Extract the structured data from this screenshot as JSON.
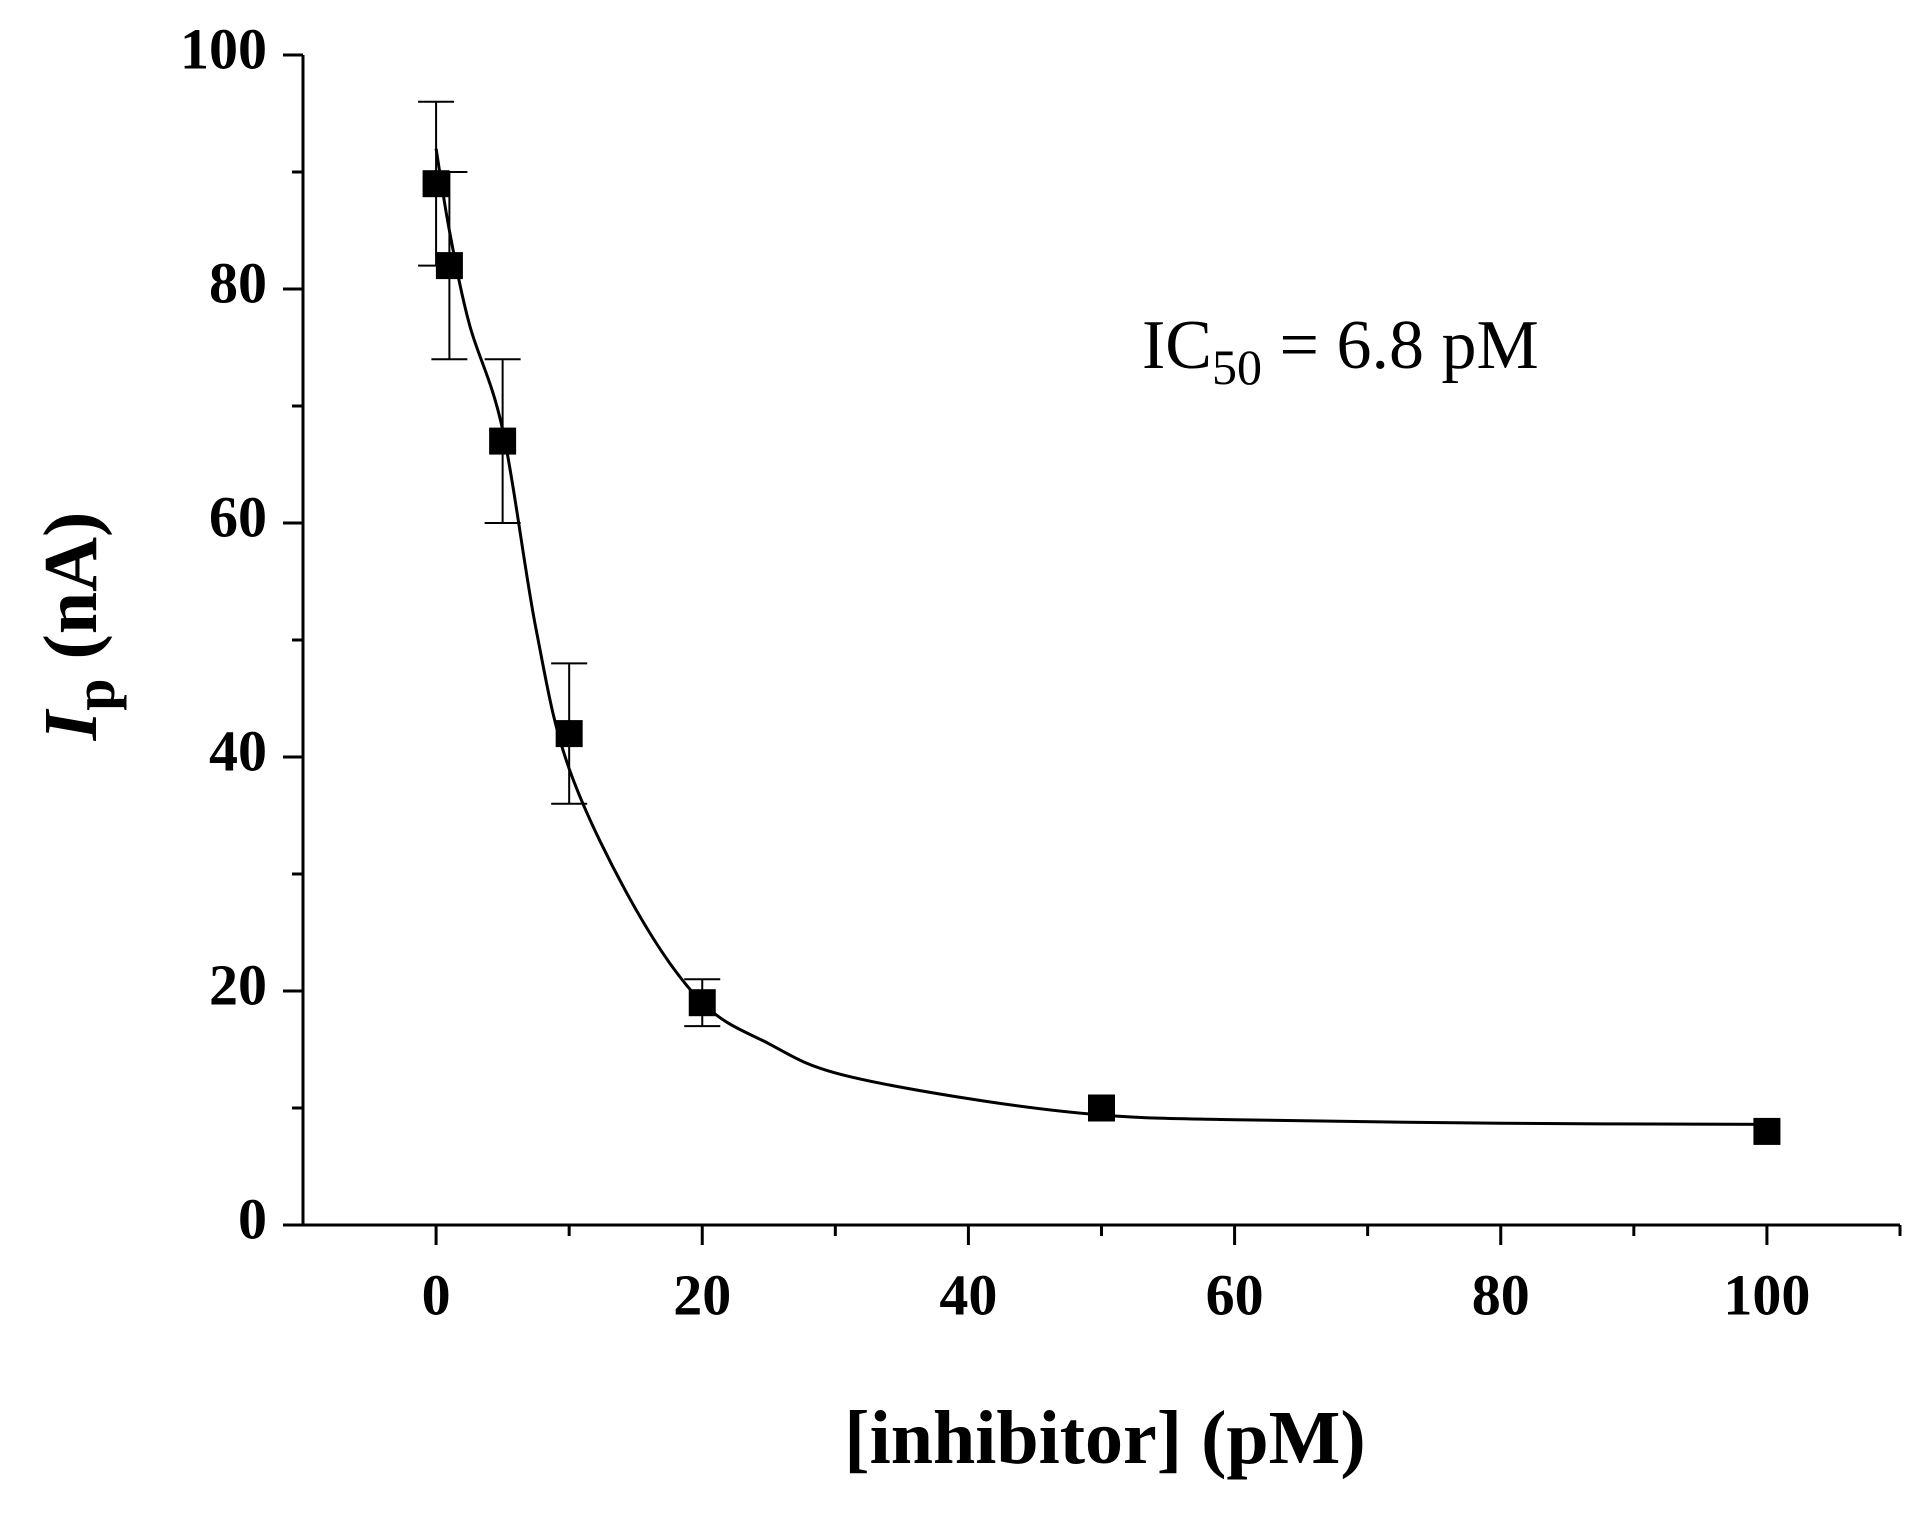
{
  "chart_data": {
    "type": "scatter",
    "annotation": {
      "main": "IC",
      "sub": "50",
      "rest": " = 6.8 pM"
    },
    "x_label": "[inhibitor] (pM)",
    "y_label": {
      "symbol": "I",
      "sub": "p",
      "rest": " (nA)"
    },
    "xlim": [
      -10,
      110
    ],
    "xticks": [
      0,
      20,
      40,
      60,
      80,
      100
    ],
    "xminorticks": [
      10,
      30,
      50,
      70,
      90,
      110
    ],
    "ylim": [
      0,
      100
    ],
    "yticks": [
      0,
      20,
      40,
      60,
      80,
      100
    ],
    "yminorticks": [
      10,
      30,
      50,
      70,
      90
    ],
    "grid": false,
    "series": [
      {
        "kind": "points",
        "color": "#000000",
        "marker": "square",
        "x": [
          0,
          1,
          5,
          10,
          20,
          50,
          100
        ],
        "values": [
          89,
          82,
          67,
          42,
          19,
          10,
          8
        ],
        "errors": [
          7,
          8,
          7,
          6,
          2,
          null,
          null
        ]
      },
      {
        "kind": "fit",
        "color": "#000000",
        "x": [
          0,
          1,
          2.5,
          5,
          7.5,
          10,
          15,
          20,
          25,
          30,
          40,
          50,
          60,
          80,
          100
        ],
        "values": [
          92,
          85,
          77,
          68,
          51,
          39,
          27,
          19,
          15.5,
          13,
          10.8,
          9.4,
          9,
          8.7,
          8.6
        ]
      }
    ]
  }
}
